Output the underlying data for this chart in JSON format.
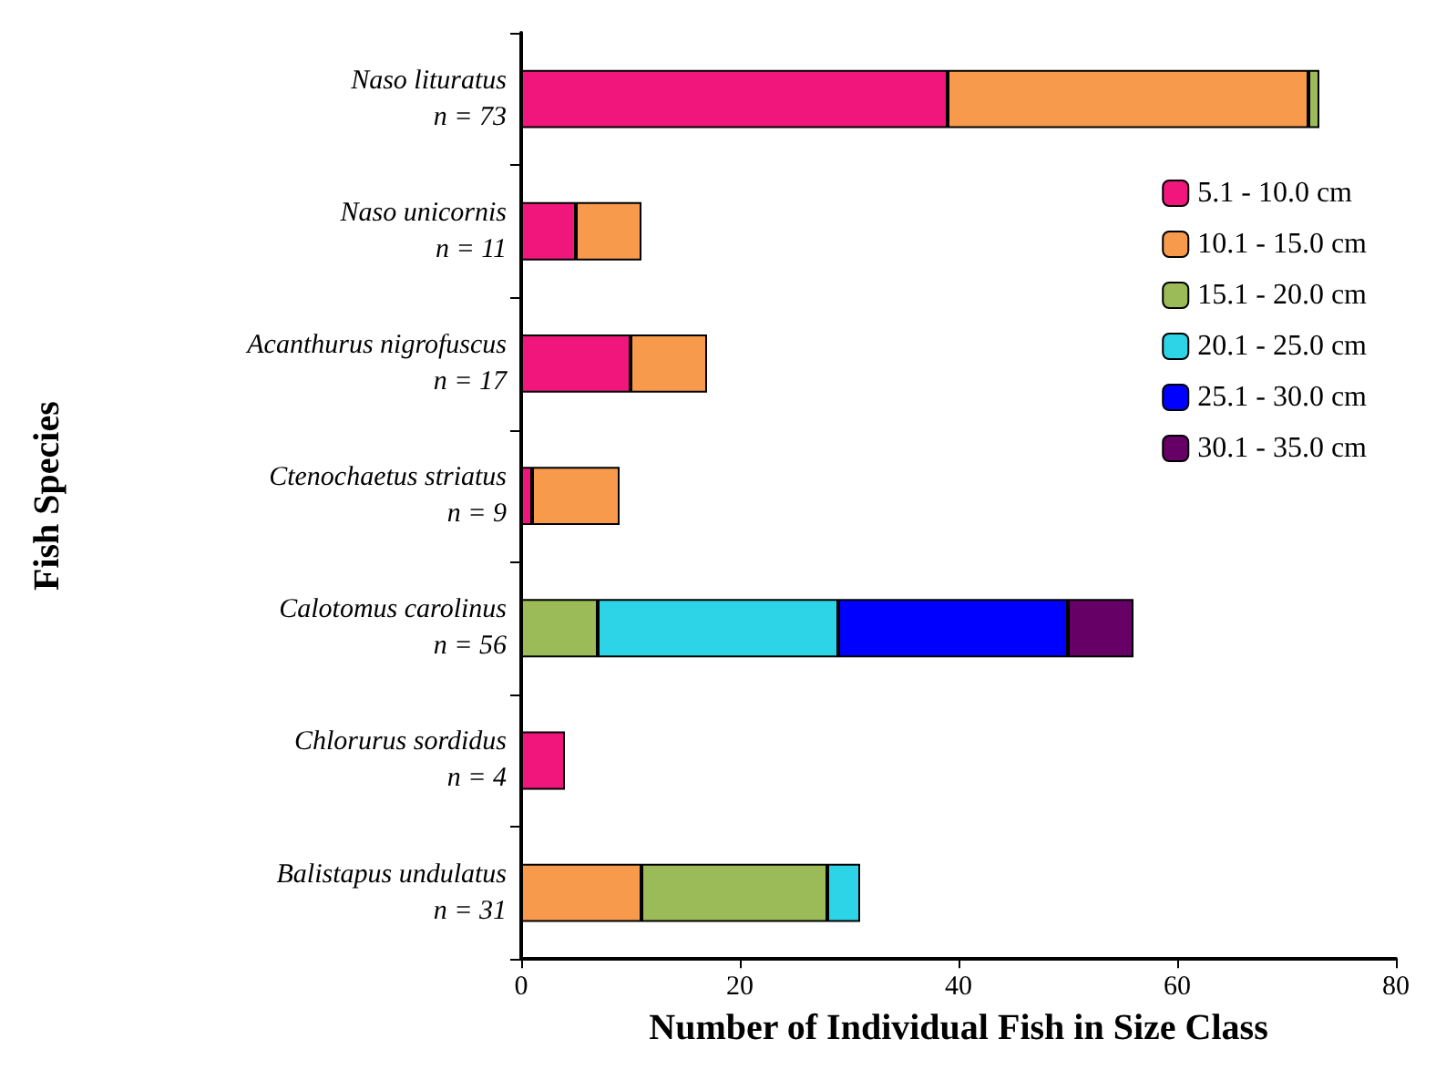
{
  "chart_data": {
    "type": "bar",
    "orientation": "horizontal",
    "stacked": true,
    "xlabel": "Number of Individual Fish in Size Class",
    "ylabel": "Fish Species",
    "categories": [
      "Naso lituratus\nn = 73",
      "Naso unicornis\nn = 11",
      "Acanthurus nigrofuscus\nn = 17",
      "Ctenochaetus striatus\nn = 9",
      "Calotomus carolinus\nn = 56",
      "Chlorurus sordidus\nn = 4",
      "Balistapus undulatus\nn = 31"
    ],
    "series": [
      {
        "name": "5.1 - 10.0 cm",
        "color": "#f0167c",
        "values": [
          39,
          5,
          10,
          1,
          null,
          4,
          null
        ]
      },
      {
        "name": "10.1 - 15.0 cm",
        "color": "#f79a4b",
        "values": [
          33,
          6,
          7,
          8,
          null,
          null,
          11
        ]
      },
      {
        "name": "15.1 - 20.0 cm",
        "color": "#9bbb59",
        "values": [
          1,
          null,
          null,
          null,
          7,
          null,
          17
        ]
      },
      {
        "name": "20.1 - 25.0 cm",
        "color": "#2dd3e6",
        "values": [
          null,
          null,
          null,
          null,
          22,
          null,
          3
        ]
      },
      {
        "name": "25.1 - 30.0 cm",
        "color": "#0000ff",
        "values": [
          null,
          null,
          null,
          null,
          21,
          null,
          null
        ]
      },
      {
        "name": "30.1 - 35.0 cm",
        "color": "#660066",
        "values": [
          null,
          null,
          null,
          null,
          6,
          null,
          null
        ]
      }
    ],
    "xlim": [
      0,
      80
    ],
    "xticks": [
      0,
      20,
      40,
      60,
      80
    ],
    "legend": "right",
    "grid": false
  }
}
